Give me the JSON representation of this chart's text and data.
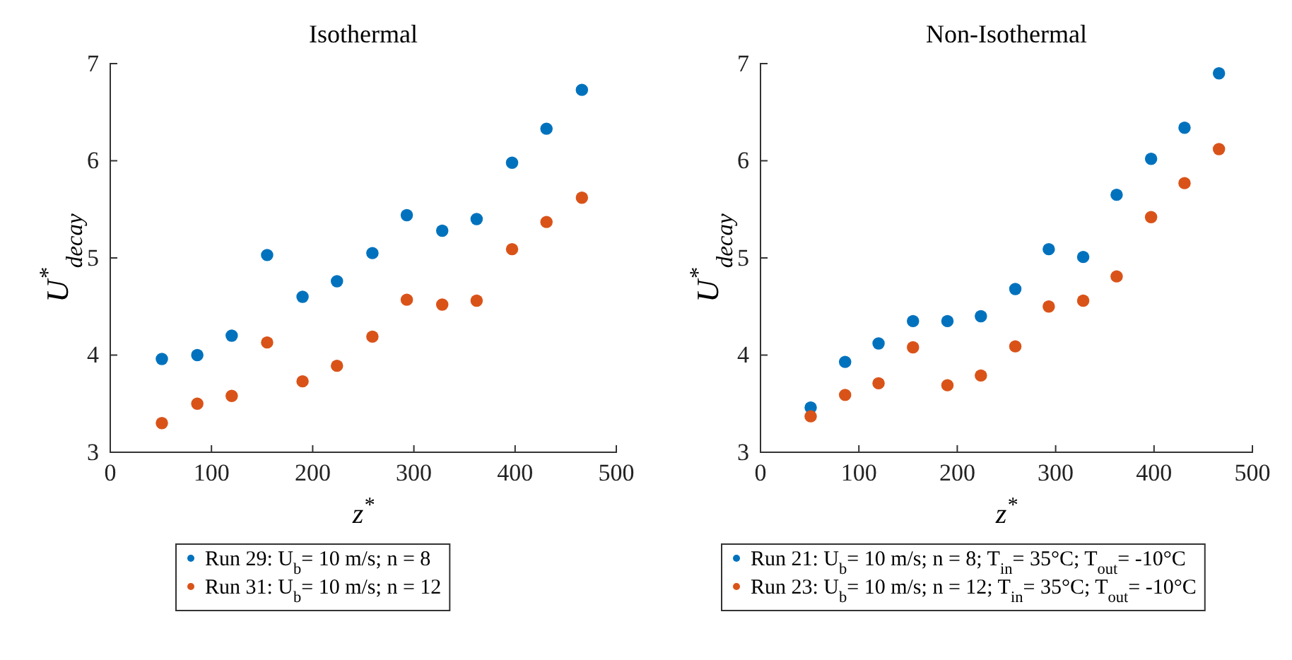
{
  "chart_data": [
    {
      "type": "scatter",
      "title": "Isothermal",
      "xlabel": "z$^{*}$",
      "ylabel": "U$^{*}$$_{decay}$",
      "xlim": [
        0,
        500
      ],
      "xticks": [
        0,
        100,
        200,
        300,
        400,
        500
      ],
      "ylim": [
        3,
        7
      ],
      "yticks": [
        3,
        4,
        5,
        6,
        7
      ],
      "marker": "circle",
      "legend": "bottom",
      "x": [
        51,
        86,
        120,
        155,
        190,
        224,
        259,
        293,
        328,
        362,
        397,
        431,
        466
      ],
      "series": [
        {
          "name": "Run 29:  U$_{b}$= 10 m/s;  n = 8",
          "color": "#0072bd",
          "values": [
            3.96,
            4.0,
            4.2,
            5.03,
            4.6,
            4.76,
            5.05,
            5.44,
            5.28,
            5.4,
            5.98,
            6.33,
            6.73
          ]
        },
        {
          "name": "Run 31:  U$_{b}$= 10 m/s;  n = 12",
          "color": "#d95319",
          "values": [
            3.3,
            3.5,
            3.58,
            4.13,
            3.73,
            3.89,
            4.19,
            4.57,
            4.52,
            4.56,
            5.09,
            5.37,
            5.62
          ]
        }
      ]
    },
    {
      "type": "scatter",
      "title": "Non-Isothermal",
      "xlabel": "z$^{*}$",
      "ylabel": "U$^{*}$$_{decay}$",
      "xlim": [
        0,
        500
      ],
      "xticks": [
        0,
        100,
        200,
        300,
        400,
        500
      ],
      "ylim": [
        3,
        7
      ],
      "yticks": [
        3,
        4,
        5,
        6,
        7
      ],
      "marker": "circle",
      "legend": "bottom",
      "x": [
        51,
        86,
        120,
        155,
        190,
        224,
        259,
        293,
        328,
        362,
        397,
        431,
        466
      ],
      "series": [
        {
          "name": "Run 21:  U$_{b}$= 10 m/s;  n = 8;  T$_{in}$= 35°C;  T$_{out}$= -10°C",
          "color": "#0072bd",
          "values": [
            3.46,
            3.93,
            4.12,
            4.35,
            4.35,
            4.4,
            4.68,
            5.09,
            5.01,
            5.65,
            6.02,
            6.34,
            6.9
          ]
        },
        {
          "name": "Run 23:  U$_{b}$= 10 m/s;  n = 12;  T$_{in}$= 35°C;  T$_{out}$= -10°C",
          "color": "#d95319",
          "values": [
            3.37,
            3.59,
            3.71,
            4.08,
            3.69,
            3.79,
            4.09,
            4.5,
            4.56,
            4.81,
            5.42,
            5.77,
            6.12
          ]
        }
      ]
    }
  ]
}
